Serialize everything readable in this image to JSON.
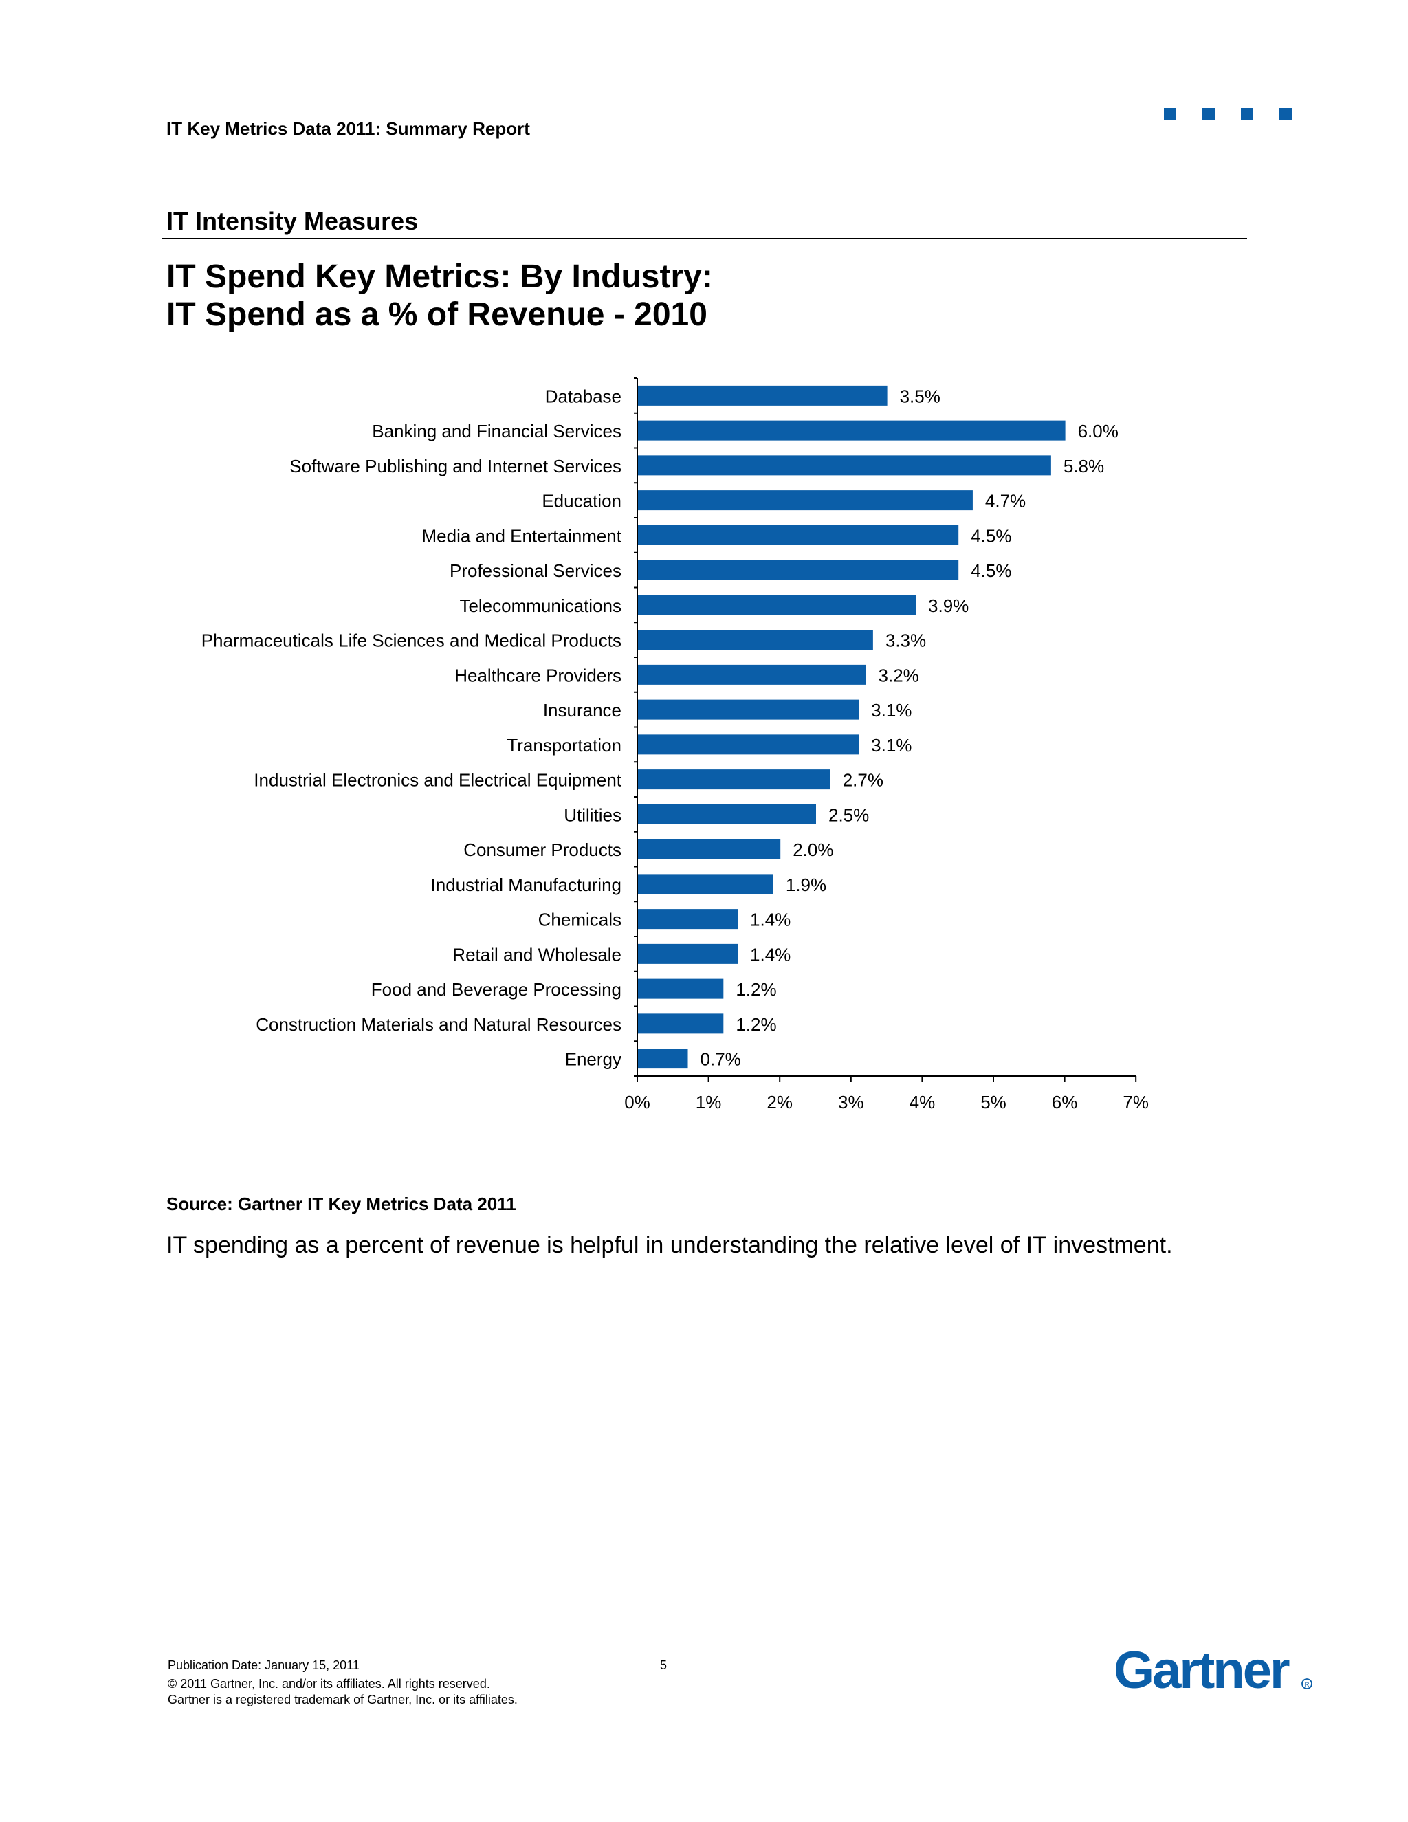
{
  "header": {
    "report_title": "IT Key Metrics Data 2011: Summary Report"
  },
  "section": {
    "title": "IT Intensity Measures"
  },
  "chart_heading": {
    "line1": "IT Spend Key Metrics: By Industry:",
    "line2": "IT Spend as a % of Revenue - 2010"
  },
  "colors": {
    "bar": "#0b5ea8",
    "brand": "#0b5ea8"
  },
  "chart_data": {
    "type": "bar",
    "orientation": "horizontal",
    "categories": [
      "Database",
      "Banking and Financial Services",
      "Software Publishing and Internet Services",
      "Education",
      "Media and Entertainment",
      "Professional Services",
      "Telecommunications",
      "Pharmaceuticals Life Sciences and Medical Products",
      "Healthcare Providers",
      "Insurance",
      "Transportation",
      "Industrial Electronics and Electrical Equipment",
      "Utilities",
      "Consumer Products",
      "Industrial Manufacturing",
      "Chemicals",
      "Retail and Wholesale",
      "Food and Beverage Processing",
      "Construction Materials and Natural Resources",
      "Energy"
    ],
    "values": [
      3.5,
      6.0,
      5.8,
      4.7,
      4.5,
      4.5,
      3.9,
      3.3,
      3.2,
      3.1,
      3.1,
      2.7,
      2.5,
      2.0,
      1.9,
      1.4,
      1.4,
      1.2,
      1.2,
      0.7
    ],
    "data_labels": [
      "3.5%",
      "6.0%",
      "5.8%",
      "4.7%",
      "4.5%",
      "4.5%",
      "3.9%",
      "3.3%",
      "3.2%",
      "3.1%",
      "3.1%",
      "2.7%",
      "2.5%",
      "2.0%",
      "1.9%",
      "1.4%",
      "1.4%",
      "1.2%",
      "1.2%",
      "0.7%"
    ],
    "xlim": [
      0,
      7
    ],
    "x_ticks": [
      "0%",
      "1%",
      "2%",
      "3%",
      "4%",
      "5%",
      "6%",
      "7%"
    ],
    "grid": false,
    "legend": false
  },
  "source": "Source: Gartner IT Key Metrics Data 2011",
  "summary": "IT spending as a percent of revenue is helpful in understanding the relative level of IT investment.",
  "footer": {
    "publication_date": "Publication Date: January 15,  2011",
    "page_number": "5",
    "copyright": "© 2011 Gartner, Inc. and/or its affiliates. All rights reserved.",
    "trademark": "Gartner is a registered trademark of Gartner, Inc. or its affiliates.",
    "logo_text": "Gartner"
  }
}
